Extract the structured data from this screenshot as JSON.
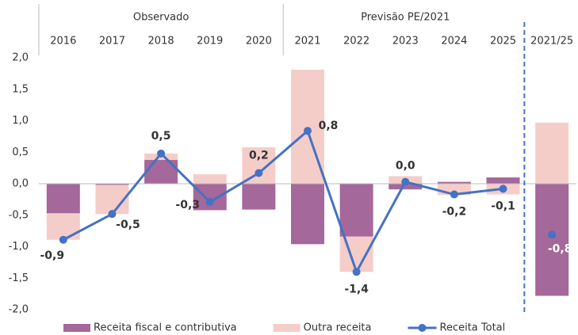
{
  "chart_data": {
    "type": "bar",
    "categories": [
      "2016",
      "2017",
      "2018",
      "2019",
      "2020",
      "2021",
      "2022",
      "2023",
      "2024",
      "2025",
      "2021/25"
    ],
    "groups": [
      {
        "label": "Observado",
        "from": 0,
        "to": 4
      },
      {
        "label": "Previsão PE/2021",
        "from": 5,
        "to": 9
      }
    ],
    "divider_index": 10,
    "ylim": [
      -2.0,
      2.0
    ],
    "yticks": [
      {
        "value": -2.0,
        "label": "-2,0"
      },
      {
        "value": -1.5,
        "label": "-1,5"
      },
      {
        "value": -1.0,
        "label": "-1,0"
      },
      {
        "value": -0.5,
        "label": "-0,5"
      },
      {
        "value": 0.0,
        "label": "0,0"
      },
      {
        "value": 0.5,
        "label": "0,5"
      },
      {
        "value": 1.0,
        "label": "1,0"
      },
      {
        "value": 1.5,
        "label": "1,5"
      },
      {
        "value": 2.0,
        "label": "2,0"
      }
    ],
    "grid": false,
    "legend": "bottom",
    "series": [
      {
        "name": "Receita fiscal e contributiva",
        "type": "bar",
        "color": "#a5689a",
        "values": [
          -0.47,
          -0.02,
          0.38,
          -0.42,
          -0.41,
          -0.96,
          -0.84,
          -0.09,
          0.03,
          0.1,
          -1.78
        ]
      },
      {
        "name": "Outra receita",
        "type": "bar",
        "color": "#f5cdc8",
        "values": [
          -0.42,
          -0.46,
          0.1,
          0.15,
          0.58,
          1.81,
          -0.56,
          0.12,
          -0.18,
          -0.17,
          0.97
        ]
      },
      {
        "name": "Receita Total",
        "type": "line",
        "color": "#4472c4",
        "values": [
          -0.89,
          -0.48,
          0.48,
          -0.29,
          0.17,
          0.84,
          -1.4,
          0.03,
          -0.17,
          -0.08,
          -0.81
        ],
        "value_labels": [
          "-0,9",
          "-0,5",
          "0,5",
          "-0,3",
          "0,2",
          "0,8",
          "-1,4",
          "0,0",
          "-0,2",
          "-0,1",
          "-0,8"
        ]
      }
    ]
  }
}
